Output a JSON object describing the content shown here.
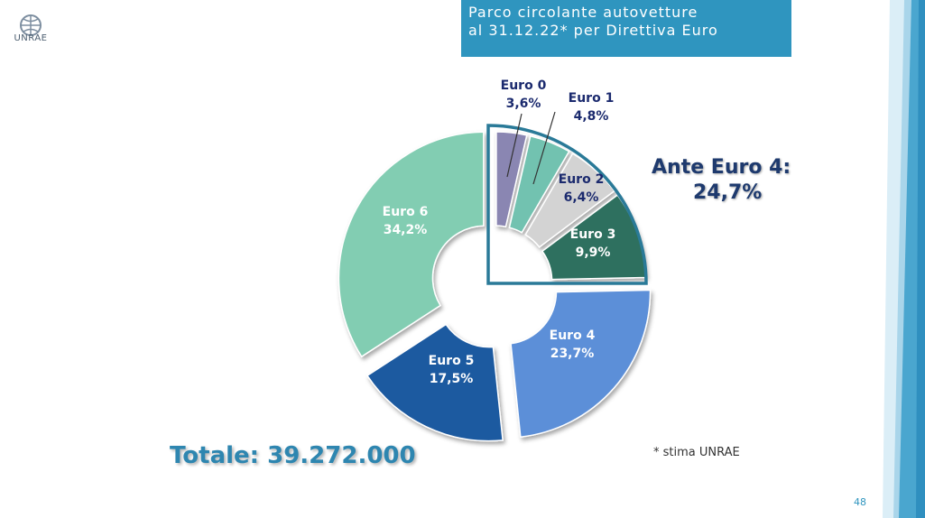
{
  "logo": {
    "text": "UNRAE"
  },
  "header": {
    "title_line1": "Parco circolante autovetture",
    "title_line2": "al 31.12.22* per Direttiva Euro"
  },
  "chart_data": {
    "type": "pie",
    "donut": true,
    "categories": [
      "Euro 0",
      "Euro 1",
      "Euro 2",
      "Euro 3",
      "Euro 4",
      "Euro 5",
      "Euro 6"
    ],
    "values": [
      3.6,
      4.8,
      6.4,
      9.9,
      23.7,
      17.5,
      34.2
    ],
    "value_labels": [
      "3,6%",
      "4,8%",
      "6,4%",
      "9,9%",
      "23,7%",
      "17,5%",
      "34,2%"
    ],
    "colors": [
      "#8a86b2",
      "#72c2b0",
      "#d3d3d3",
      "#2f6f5e",
      "#5b8fd8",
      "#1f5aa0",
      "#82cdb2"
    ],
    "label_colors": [
      "#1b2a6e",
      "#1b2a6e",
      "#1b2a6e",
      "#ffffff",
      "#ffffff",
      "#ffffff",
      "#ffffff"
    ]
  },
  "annotation": {
    "line1": "Ante Euro 4:",
    "line2": "24,7%"
  },
  "totale": "Totale: 39.272.000",
  "note": "* stima UNRAE",
  "page_number": "48"
}
